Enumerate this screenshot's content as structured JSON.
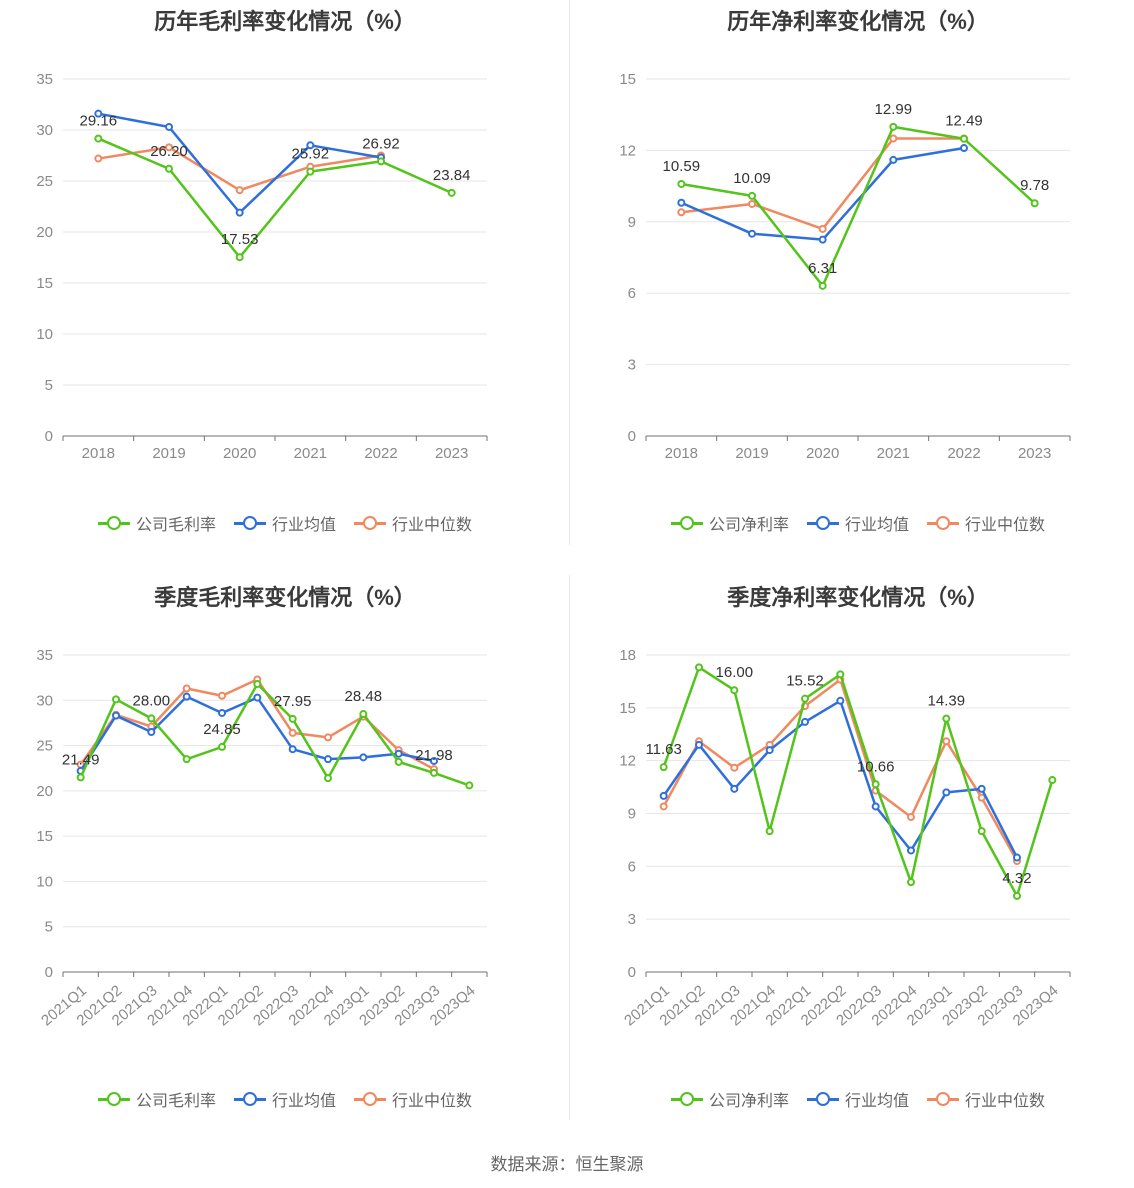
{
  "source": "数据来源：恒生聚源",
  "legend_labels": {
    "gross": [
      "公司毛利率",
      "行业均值",
      "行业中位数"
    ],
    "net": [
      "公司净利率",
      "行业均值",
      "行业中位数"
    ]
  },
  "colors": {
    "company": "#52c41a",
    "mean": "#2f6fdb",
    "median": "#f08860"
  },
  "chart_data": [
    {
      "type": "line",
      "title": "历年毛利率变化情况（%）",
      "categories": [
        "2018",
        "2019",
        "2020",
        "2021",
        "2022",
        "2023"
      ],
      "ylim": [
        0,
        35
      ],
      "yticks": [
        0,
        5,
        10,
        15,
        20,
        25,
        30,
        35
      ],
      "series": [
        {
          "name": "公司毛利率",
          "values": [
            29.16,
            26.2,
            17.53,
            25.92,
            26.92,
            23.84
          ]
        },
        {
          "name": "行业均值",
          "values": [
            31.6,
            30.3,
            21.9,
            28.5,
            27.3,
            null
          ]
        },
        {
          "name": "行业中位数",
          "values": [
            27.2,
            28.3,
            24.1,
            26.4,
            27.5,
            null
          ]
        }
      ],
      "data_labels": [
        "29.16",
        "26.20",
        "17.53",
        "25.92",
        "26.92",
        "23.84"
      ]
    },
    {
      "type": "line",
      "title": "历年净利率变化情况（%）",
      "categories": [
        "2018",
        "2019",
        "2020",
        "2021",
        "2022",
        "2023"
      ],
      "ylim": [
        0,
        15
      ],
      "yticks": [
        0,
        3,
        6,
        9,
        12,
        15
      ],
      "series": [
        {
          "name": "公司净利率",
          "values": [
            10.59,
            10.09,
            6.31,
            12.99,
            12.49,
            9.78
          ]
        },
        {
          "name": "行业均值",
          "values": [
            9.8,
            8.5,
            8.25,
            11.6,
            12.1,
            null
          ]
        },
        {
          "name": "行业中位数",
          "values": [
            9.4,
            9.75,
            8.7,
            12.5,
            12.5,
            null
          ]
        }
      ],
      "data_labels": [
        "10.59",
        "10.09",
        "6.31",
        "12.99",
        "12.49",
        "9.78"
      ]
    },
    {
      "type": "line",
      "title": "季度毛利率变化情况（%）",
      "categories": [
        "2021Q1",
        "2021Q2",
        "2021Q3",
        "2021Q4",
        "2022Q1",
        "2022Q2",
        "2022Q3",
        "2022Q4",
        "2023Q1",
        "2023Q2",
        "2023Q3",
        "2023Q4"
      ],
      "ylim": [
        0,
        35
      ],
      "yticks": [
        0,
        5,
        10,
        15,
        20,
        25,
        30,
        35
      ],
      "series": [
        {
          "name": "公司毛利率",
          "values": [
            21.49,
            30.1,
            28.0,
            23.5,
            24.85,
            31.8,
            27.95,
            21.4,
            28.48,
            23.2,
            21.98,
            20.6
          ]
        },
        {
          "name": "行业均值",
          "values": [
            22.2,
            28.3,
            26.5,
            30.4,
            28.6,
            30.3,
            24.6,
            23.5,
            23.7,
            24.1,
            23.3,
            null
          ]
        },
        {
          "name": "行业中位数",
          "values": [
            22.9,
            28.4,
            27.1,
            31.3,
            30.5,
            32.3,
            26.4,
            25.9,
            28.2,
            24.5,
            22.4,
            null
          ]
        }
      ],
      "data_labels": [
        "21.49",
        "",
        "28.00",
        "",
        "24.85",
        "",
        "27.95",
        "",
        "28.48",
        "",
        "21.98",
        ""
      ]
    },
    {
      "type": "line",
      "title": "季度净利率变化情况（%）",
      "categories": [
        "2021Q1",
        "2021Q2",
        "2021Q3",
        "2021Q4",
        "2022Q1",
        "2022Q2",
        "2022Q3",
        "2022Q4",
        "2023Q1",
        "2023Q2",
        "2023Q3",
        "2023Q4"
      ],
      "ylim": [
        0,
        18
      ],
      "yticks": [
        0,
        3,
        6,
        9,
        12,
        15,
        18
      ],
      "series": [
        {
          "name": "公司净利率",
          "values": [
            11.63,
            17.3,
            16.0,
            8.0,
            15.52,
            16.9,
            10.66,
            5.1,
            14.39,
            8.0,
            4.32,
            10.9
          ]
        },
        {
          "name": "行业均值",
          "values": [
            10.0,
            12.9,
            10.4,
            12.6,
            14.2,
            15.4,
            9.4,
            6.9,
            10.2,
            10.4,
            6.5,
            null
          ]
        },
        {
          "name": "行业中位数",
          "values": [
            9.4,
            13.1,
            11.6,
            12.9,
            15.1,
            16.6,
            10.3,
            8.8,
            13.1,
            9.9,
            6.3,
            null
          ]
        }
      ],
      "data_labels": [
        "11.63",
        "",
        "16.00",
        "",
        "15.52",
        "",
        "10.66",
        "",
        "14.39",
        "",
        "4.32",
        ""
      ]
    }
  ]
}
